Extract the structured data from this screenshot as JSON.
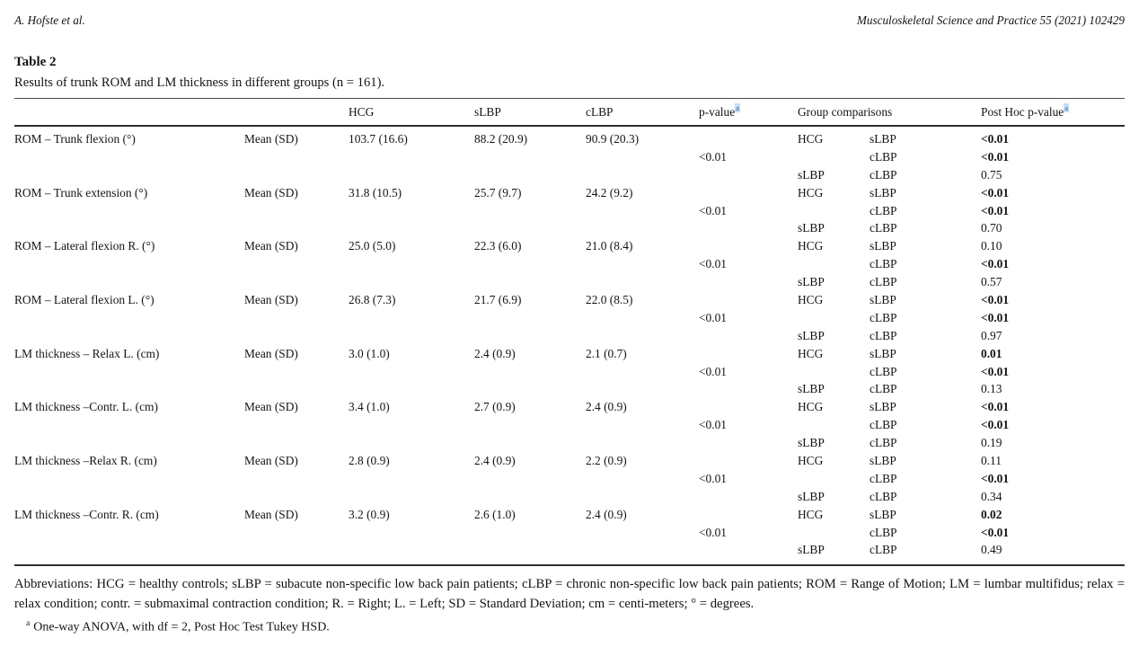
{
  "page_header": {
    "authors": "A. Hofste et al.",
    "journal": "Musculoskeletal Science and Practice 55 (2021) 102429"
  },
  "table": {
    "label": "Table 2",
    "caption": "Results of trunk ROM and LM thickness in different groups (n = 161).",
    "superscript_marker": "a",
    "headers": {
      "group1": "HCG",
      "group2": "sLBP",
      "group3": "cLBP",
      "p_value": "p-value",
      "group_comparisons": "Group comparisons",
      "post_hoc": "Post Hoc p-value"
    },
    "measures": [
      {
        "label": "ROM – Trunk flexion (°)",
        "stat": "Mean (SD)",
        "hcg": "103.7 (16.6)",
        "slbp": "88.2 (20.9)",
        "clbp": "90.9 (20.3)",
        "p_value": "<0.01",
        "comparisons": [
          {
            "g1": "HCG",
            "g2": "sLBP",
            "post_hoc": "<0.01",
            "bold": true
          },
          {
            "g1": "",
            "g2": "cLBP",
            "post_hoc": "<0.01",
            "bold": true
          },
          {
            "g1": "sLBP",
            "g2": "cLBP",
            "post_hoc": "0.75",
            "bold": false
          }
        ]
      },
      {
        "label": "ROM – Trunk extension (°)",
        "stat": "Mean (SD)",
        "hcg": "31.8 (10.5)",
        "slbp": "25.7 (9.7)",
        "clbp": "24.2 (9.2)",
        "p_value": "<0.01",
        "comparisons": [
          {
            "g1": "HCG",
            "g2": "sLBP",
            "post_hoc": "<0.01",
            "bold": true
          },
          {
            "g1": "",
            "g2": "cLBP",
            "post_hoc": "<0.01",
            "bold": true
          },
          {
            "g1": "sLBP",
            "g2": "cLBP",
            "post_hoc": "0.70",
            "bold": false
          }
        ]
      },
      {
        "label": "ROM – Lateral flexion R. (°)",
        "stat": "Mean (SD)",
        "hcg": "25.0 (5.0)",
        "slbp": "22.3 (6.0)",
        "clbp": "21.0 (8.4)",
        "p_value": "<0.01",
        "comparisons": [
          {
            "g1": "HCG",
            "g2": "sLBP",
            "post_hoc": "0.10",
            "bold": false
          },
          {
            "g1": "",
            "g2": "cLBP",
            "post_hoc": "<0.01",
            "bold": true
          },
          {
            "g1": "sLBP",
            "g2": "cLBP",
            "post_hoc": "0.57",
            "bold": false
          }
        ]
      },
      {
        "label": "ROM – Lateral flexion L. (°)",
        "stat": "Mean (SD)",
        "hcg": "26.8 (7.3)",
        "slbp": "21.7 (6.9)",
        "clbp": "22.0 (8.5)",
        "p_value": "<0.01",
        "comparisons": [
          {
            "g1": "HCG",
            "g2": "sLBP",
            "post_hoc": "<0.01",
            "bold": true
          },
          {
            "g1": "",
            "g2": "cLBP",
            "post_hoc": "<0.01",
            "bold": true
          },
          {
            "g1": "sLBP",
            "g2": "cLBP",
            "post_hoc": "0.97",
            "bold": false
          }
        ]
      },
      {
        "label": "LM thickness – Relax L. (cm)",
        "stat": "Mean (SD)",
        "hcg": "3.0 (1.0)",
        "slbp": "2.4 (0.9)",
        "clbp": "2.1 (0.7)",
        "p_value": "<0.01",
        "comparisons": [
          {
            "g1": "HCG",
            "g2": "sLBP",
            "post_hoc": "0.01",
            "bold": true
          },
          {
            "g1": "",
            "g2": "cLBP",
            "post_hoc": "<0.01",
            "bold": true
          },
          {
            "g1": "sLBP",
            "g2": "cLBP",
            "post_hoc": "0.13",
            "bold": false
          }
        ]
      },
      {
        "label": "LM thickness –Contr. L. (cm)",
        "stat": "Mean (SD)",
        "hcg": "3.4 (1.0)",
        "slbp": "2.7 (0.9)",
        "clbp": "2.4 (0.9)",
        "p_value": "<0.01",
        "comparisons": [
          {
            "g1": "HCG",
            "g2": "sLBP",
            "post_hoc": "<0.01",
            "bold": true
          },
          {
            "g1": "",
            "g2": "cLBP",
            "post_hoc": "<0.01",
            "bold": true
          },
          {
            "g1": "sLBP",
            "g2": "cLBP",
            "post_hoc": "0.19",
            "bold": false
          }
        ]
      },
      {
        "label": "LM thickness –Relax R. (cm)",
        "stat": "Mean (SD)",
        "hcg": "2.8 (0.9)",
        "slbp": "2.4 (0.9)",
        "clbp": "2.2 (0.9)",
        "p_value": "<0.01",
        "comparisons": [
          {
            "g1": "HCG",
            "g2": "sLBP",
            "post_hoc": "0.11",
            "bold": false
          },
          {
            "g1": "",
            "g2": "cLBP",
            "post_hoc": "<0.01",
            "bold": true
          },
          {
            "g1": "sLBP",
            "g2": "cLBP",
            "post_hoc": "0.34",
            "bold": false
          }
        ]
      },
      {
        "label": "LM thickness –Contr. R. (cm)",
        "stat": "Mean (SD)",
        "hcg": "3.2 (0.9)",
        "slbp": "2.6 (1.0)",
        "clbp": "2.4 (0.9)",
        "p_value": "<0.01",
        "comparisons": [
          {
            "g1": "HCG",
            "g2": "sLBP",
            "post_hoc": "0.02",
            "bold": true
          },
          {
            "g1": "",
            "g2": "cLBP",
            "post_hoc": "<0.01",
            "bold": true
          },
          {
            "g1": "sLBP",
            "g2": "cLBP",
            "post_hoc": "0.49",
            "bold": false
          }
        ]
      }
    ]
  },
  "footer": {
    "abbreviations": "Abbreviations: HCG = healthy controls; sLBP = subacute non-specific low back pain patients; cLBP = chronic non-specific low back pain patients; ROM = Range of Motion; LM = lumbar multifidus; relax = relax condition; contr. = submaximal contraction condition; R. = Right; L. = Left; SD = Standard Deviation; cm = centi-meters; ° = degrees.",
    "footnote_marker": "a",
    "footnote": "One-way ANOVA, with df = 2, Post Hoc Test Tukey HSD."
  }
}
